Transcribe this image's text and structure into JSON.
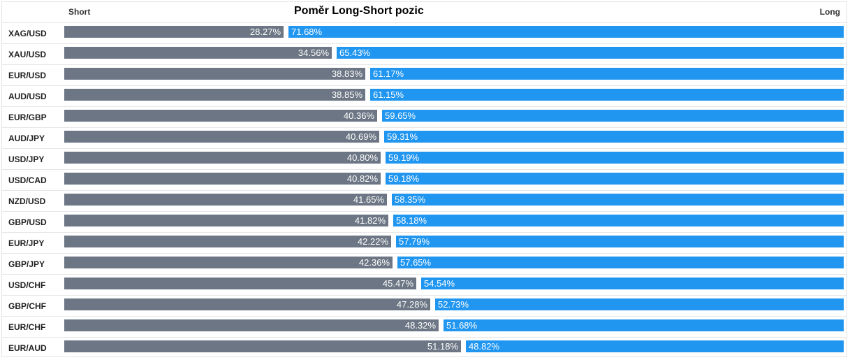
{
  "chart_data": {
    "type": "bar",
    "title": "Poměr Long-Short pozic",
    "left_label": "Short",
    "right_label": "Long",
    "colors": {
      "short": "#6c7684",
      "long": "#2196f0"
    },
    "series": [
      {
        "name": "Short",
        "values": [
          28.27,
          34.56,
          38.83,
          38.85,
          40.36,
          40.69,
          40.8,
          40.82,
          41.65,
          41.82,
          42.22,
          42.36,
          45.47,
          47.28,
          48.32,
          51.18
        ]
      },
      {
        "name": "Long",
        "values": [
          71.68,
          65.43,
          61.17,
          61.15,
          59.65,
          59.31,
          59.19,
          59.18,
          58.35,
          58.18,
          57.79,
          57.65,
          54.54,
          52.73,
          51.68,
          48.82
        ]
      }
    ],
    "rows": [
      {
        "pair": "XAG/USD",
        "short": 28.27,
        "long": 71.68,
        "short_label": "28.27%",
        "long_label": "71.68%"
      },
      {
        "pair": "XAU/USD",
        "short": 34.56,
        "long": 65.43,
        "short_label": "34.56%",
        "long_label": "65.43%"
      },
      {
        "pair": "EUR/USD",
        "short": 38.83,
        "long": 61.17,
        "short_label": "38.83%",
        "long_label": "61.17%"
      },
      {
        "pair": "AUD/USD",
        "short": 38.85,
        "long": 61.15,
        "short_label": "38.85%",
        "long_label": "61.15%"
      },
      {
        "pair": "EUR/GBP",
        "short": 40.36,
        "long": 59.65,
        "short_label": "40.36%",
        "long_label": "59.65%"
      },
      {
        "pair": "AUD/JPY",
        "short": 40.69,
        "long": 59.31,
        "short_label": "40.69%",
        "long_label": "59.31%"
      },
      {
        "pair": "USD/JPY",
        "short": 40.8,
        "long": 59.19,
        "short_label": "40.80%",
        "long_label": "59.19%"
      },
      {
        "pair": "USD/CAD",
        "short": 40.82,
        "long": 59.18,
        "short_label": "40.82%",
        "long_label": "59.18%"
      },
      {
        "pair": "NZD/USD",
        "short": 41.65,
        "long": 58.35,
        "short_label": "41.65%",
        "long_label": "58.35%"
      },
      {
        "pair": "GBP/USD",
        "short": 41.82,
        "long": 58.18,
        "short_label": "41.82%",
        "long_label": "58.18%"
      },
      {
        "pair": "EUR/JPY",
        "short": 42.22,
        "long": 57.79,
        "short_label": "42.22%",
        "long_label": "57.79%"
      },
      {
        "pair": "GBP/JPY",
        "short": 42.36,
        "long": 57.65,
        "short_label": "42.36%",
        "long_label": "57.65%"
      },
      {
        "pair": "USD/CHF",
        "short": 45.47,
        "long": 54.54,
        "short_label": "45.47%",
        "long_label": "54.54%"
      },
      {
        "pair": "GBP/CHF",
        "short": 47.28,
        "long": 52.73,
        "short_label": "47.28%",
        "long_label": "52.73%"
      },
      {
        "pair": "EUR/CHF",
        "short": 48.32,
        "long": 51.68,
        "short_label": "48.32%",
        "long_label": "51.68%"
      },
      {
        "pair": "EUR/AUD",
        "short": 51.18,
        "long": 48.82,
        "short_label": "51.18%",
        "long_label": "48.82%"
      }
    ]
  }
}
